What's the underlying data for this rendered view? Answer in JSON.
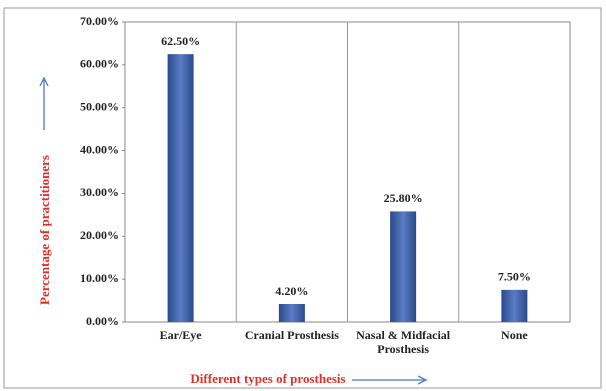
{
  "chart_data": {
    "type": "bar",
    "x_label": "Different types of prosthesis",
    "y_label": "Percentage of practitioners",
    "categories": [
      "Ear/Eye",
      "Cranial Prosthesis",
      "Nasal & Midfacial Prosthesis",
      "None"
    ],
    "values": [
      62.5,
      4.2,
      25.8,
      7.5
    ],
    "value_labels": [
      "62.50%",
      "4.20%",
      "25.80%",
      "7.50%"
    ],
    "color": "#3b5ca8",
    "ylim": [
      0,
      70
    ],
    "yticks": [
      {
        "value": 0,
        "label": "0.00%"
      },
      {
        "value": 10,
        "label": "10.00%"
      },
      {
        "value": 20,
        "label": "20.00%"
      },
      {
        "value": 30,
        "label": "30.00%"
      },
      {
        "value": 40,
        "label": "40.00%"
      },
      {
        "value": 50,
        "label": "50.00%"
      },
      {
        "value": 60,
        "label": "60.00%"
      },
      {
        "value": 70,
        "label": "70.00%"
      }
    ]
  }
}
